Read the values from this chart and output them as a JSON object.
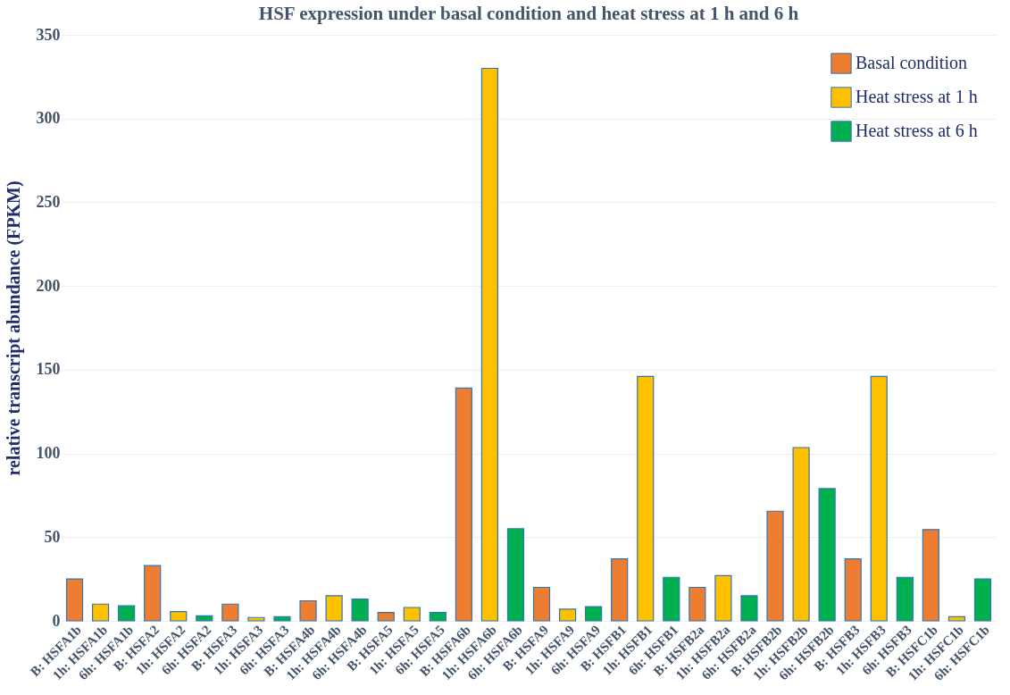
{
  "chart_data": {
    "type": "bar",
    "title": "HSF expression under basal condition and heat stress at 1 h and 6 h",
    "ylabel": "relative transcript abundance (FPKM)",
    "categories": [
      "B: HSFA1b",
      "1h: HSFA1b",
      "6h: HSFA1b",
      "B: HSFA2",
      "1h: HSFA2",
      "6h: HSFA2",
      "B: HSFA3",
      "1h: HSFA3",
      "6h: HSFA3",
      "B: HSFA4b",
      "1h: HSFA4b",
      "6h: HSFA4b",
      "B: HSFA5",
      "1h: HSFA5",
      "6h: HSFA5",
      "B: HSFA6b",
      "1h: HSFA6b",
      "6h: HSFA6b",
      "B: HSFA9",
      "1h: HSFA9",
      "6h: HSFA9",
      "B: HSFB1",
      "1h: HSFB1",
      "6h: HSFB1",
      "B: HSFB2a",
      "1h: HSFB2a",
      "6h: HSFB2a",
      "B: HSFB2b",
      "1h: HSFB2b",
      "6h: HSFB2b",
      "B: HSFB3",
      "1h: HSFB3",
      "6h: HSFB3",
      "B: HSFC1b",
      "1h: HSFC1b",
      "6h: HSFC1b"
    ],
    "series": [
      {
        "name": "Basal condition",
        "color": "#ed7d31",
        "values": [
          25,
          null,
          null,
          33,
          null,
          null,
          10,
          null,
          null,
          12,
          null,
          null,
          5,
          null,
          null,
          139,
          null,
          null,
          20,
          null,
          null,
          37,
          null,
          null,
          20,
          null,
          null,
          65.5,
          null,
          null,
          37,
          null,
          null,
          54.5,
          null,
          null
        ]
      },
      {
        "name": "Heat stress at 1 h",
        "color": "#ffc000",
        "values": [
          null,
          10,
          null,
          null,
          5.5,
          null,
          null,
          2,
          null,
          null,
          15,
          null,
          null,
          8,
          null,
          null,
          330,
          null,
          null,
          7,
          null,
          null,
          146,
          null,
          null,
          27,
          null,
          null,
          103.5,
          null,
          null,
          146,
          null,
          null,
          2.5,
          null
        ]
      },
      {
        "name": "Heat stress at 6 h",
        "color": "#00b050",
        "values": [
          null,
          null,
          9,
          null,
          null,
          3,
          null,
          null,
          2.5,
          null,
          null,
          13,
          null,
          null,
          5,
          null,
          null,
          55,
          null,
          null,
          8.5,
          null,
          null,
          26,
          null,
          null,
          15,
          null,
          null,
          79,
          null,
          null,
          26,
          null,
          null,
          25
        ]
      }
    ],
    "ylim": [
      0,
      350
    ],
    "yticks": [
      0,
      50,
      100,
      150,
      200,
      250,
      300,
      350
    ],
    "grid": "y",
    "legend": "top right"
  }
}
